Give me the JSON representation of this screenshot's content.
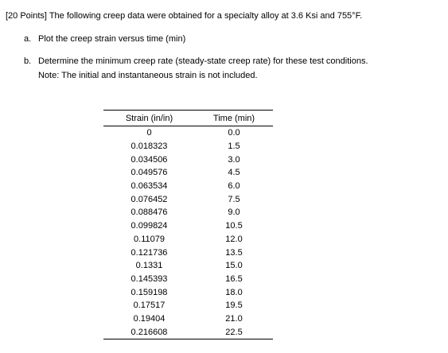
{
  "problem": {
    "intro": "[20 Points] The following creep data were obtained for a specialty alloy at 3.6 Ksi and 755°F.",
    "items": [
      {
        "marker": "a.",
        "text": "Plot the creep strain versus time (min)"
      },
      {
        "marker": "b.",
        "text": "Determine the minimum creep rate (steady-state creep rate) for these test conditions."
      }
    ],
    "note": "Note: The initial and instantaneous strain is not included."
  },
  "table": {
    "headers": [
      "Strain (in/in)",
      "Time (min)"
    ],
    "rows": [
      [
        "0",
        "0.0"
      ],
      [
        "0.018323",
        "1.5"
      ],
      [
        "0.034506",
        "3.0"
      ],
      [
        "0.049576",
        "4.5"
      ],
      [
        "0.063534",
        "6.0"
      ],
      [
        "0.076452",
        "7.5"
      ],
      [
        "0.088476",
        "9.0"
      ],
      [
        "0.099824",
        "10.5"
      ],
      [
        "0.11079",
        "12.0"
      ],
      [
        "0.121736",
        "13.5"
      ],
      [
        "0.1331",
        "15.0"
      ],
      [
        "0.145393",
        "16.5"
      ],
      [
        "0.159198",
        "18.0"
      ],
      [
        "0.17517",
        "19.5"
      ],
      [
        "0.19404",
        "21.0"
      ],
      [
        "0.216608",
        "22.5"
      ]
    ]
  }
}
